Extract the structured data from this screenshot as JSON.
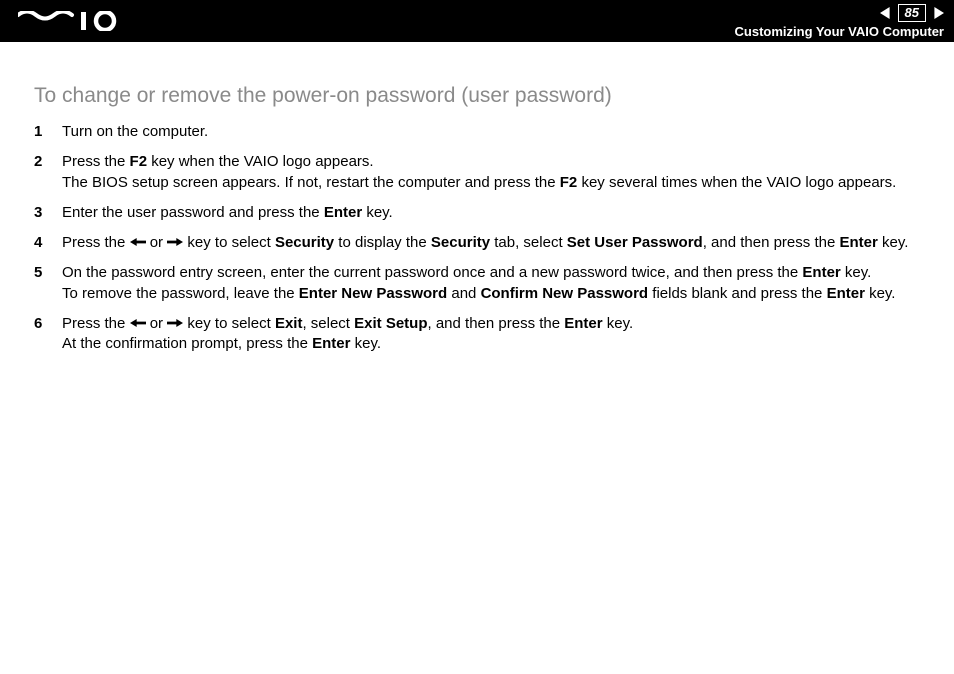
{
  "header": {
    "page_number": "85",
    "section_name": "Customizing Your VAIO Computer"
  },
  "content": {
    "title": "To change or remove the power-on password (user password)",
    "steps": [
      {
        "num": "1",
        "segments": [
          {
            "t": "Turn on the computer."
          }
        ]
      },
      {
        "num": "2",
        "segments": [
          {
            "t": "Press the "
          },
          {
            "t": "F2",
            "b": true
          },
          {
            "t": " key when the VAIO logo appears."
          },
          {
            "br": true
          },
          {
            "t": "The BIOS setup screen appears. If not, restart the computer and press the "
          },
          {
            "t": "F2",
            "b": true
          },
          {
            "t": " key several times when the VAIO logo appears."
          }
        ]
      },
      {
        "num": "3",
        "segments": [
          {
            "t": "Enter the user password and press the "
          },
          {
            "t": "Enter",
            "b": true
          },
          {
            "t": " key."
          }
        ]
      },
      {
        "num": "4",
        "segments": [
          {
            "t": "Press the "
          },
          {
            "arrow": "left"
          },
          {
            "t": " or "
          },
          {
            "arrow": "right"
          },
          {
            "t": " key to select "
          },
          {
            "t": "Security",
            "b": true
          },
          {
            "t": " to display the "
          },
          {
            "t": "Security",
            "b": true
          },
          {
            "t": " tab, select "
          },
          {
            "t": "Set User Password",
            "b": true
          },
          {
            "t": ", and then press the "
          },
          {
            "t": "Enter",
            "b": true
          },
          {
            "t": " key."
          }
        ]
      },
      {
        "num": "5",
        "segments": [
          {
            "t": "On the password entry screen, enter the current password once and a new password twice, and then press the "
          },
          {
            "t": "Enter",
            "b": true
          },
          {
            "t": " key."
          },
          {
            "br": true
          },
          {
            "t": "To remove the password, leave the "
          },
          {
            "t": "Enter New Password",
            "b": true
          },
          {
            "t": " and "
          },
          {
            "t": "Confirm New Password",
            "b": true
          },
          {
            "t": " fields blank and press the "
          },
          {
            "t": "Enter",
            "b": true
          },
          {
            "t": " key."
          }
        ]
      },
      {
        "num": "6",
        "segments": [
          {
            "t": "Press the "
          },
          {
            "arrow": "left"
          },
          {
            "t": " or "
          },
          {
            "arrow": "right"
          },
          {
            "t": " key to select "
          },
          {
            "t": "Exit",
            "b": true
          },
          {
            "t": ", select "
          },
          {
            "t": "Exit Setup",
            "b": true
          },
          {
            "t": ", and then press the "
          },
          {
            "t": "Enter",
            "b": true
          },
          {
            "t": " key."
          },
          {
            "br": true
          },
          {
            "t": "At the confirmation prompt, press the "
          },
          {
            "t": "Enter",
            "b": true
          },
          {
            "t": " key."
          }
        ]
      }
    ]
  }
}
